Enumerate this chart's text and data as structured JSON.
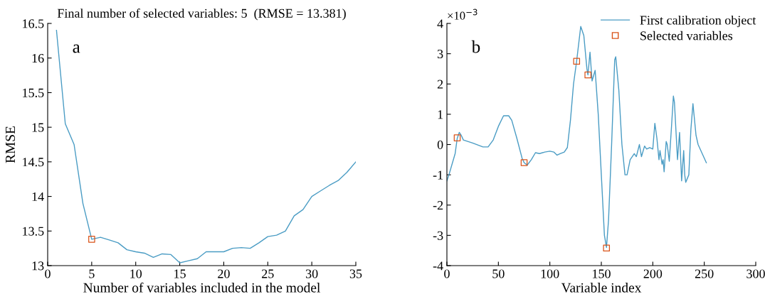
{
  "chart_data": [
    {
      "type": "line",
      "title": "Final number of selected variables: 5  (RMSE = 13.381)",
      "xlabel": "Number of variables included in the model",
      "ylabel": "RMSE",
      "xlim": [
        0,
        35
      ],
      "xticks": [
        0,
        5,
        10,
        15,
        20,
        25,
        30,
        35
      ],
      "ylim": [
        13,
        16.5
      ],
      "yticks": [
        13,
        13.5,
        14,
        14.5,
        15,
        15.5,
        16,
        16.5
      ],
      "grid": false,
      "legend": false,
      "annotations": [
        "a"
      ],
      "series": [
        {
          "color": "#4a9cc4",
          "marker": "none",
          "x": [
            1,
            2,
            3,
            4,
            5,
            6,
            7,
            8,
            9,
            10,
            11,
            12,
            13,
            14,
            15,
            16,
            17,
            18,
            19,
            20,
            21,
            22,
            23,
            24,
            25,
            26,
            27,
            28,
            29,
            30,
            31,
            32,
            33,
            34,
            35
          ],
          "values": [
            16.4,
            15.05,
            14.75,
            13.9,
            13.381,
            13.41,
            13.37,
            13.33,
            13.23,
            13.2,
            13.18,
            13.12,
            13.17,
            13.16,
            13.04,
            13.07,
            13.1,
            13.2,
            13.2,
            13.2,
            13.25,
            13.26,
            13.25,
            13.33,
            13.42,
            13.44,
            13.5,
            13.72,
            13.81,
            14.0,
            14.08,
            14.16,
            14.23,
            14.35,
            14.5
          ]
        },
        {
          "type": "scatter",
          "color": "#d95319",
          "marker": "square",
          "x": [
            5
          ],
          "values": [
            13.381
          ]
        }
      ]
    },
    {
      "type": "line",
      "xlabel": "Variable index",
      "xlim": [
        0,
        300
      ],
      "xticks": [
        0,
        50,
        100,
        150,
        200,
        250,
        300
      ],
      "ylim": [
        -4,
        4
      ],
      "yticks": [
        {
          "value": -4,
          "label": "-4"
        },
        {
          "value": -3,
          "label": "-3"
        },
        {
          "value": -2,
          "label": "-2"
        },
        {
          "value": -1,
          "label": "-1"
        },
        0,
        1,
        2,
        3,
        4
      ],
      "grid": false,
      "legend": "top right",
      "annotations": [
        "b",
        "×10$^{−3}$"
      ],
      "series": [
        {
          "name": "First calibration object",
          "color": "#4a9cc4",
          "marker": "none",
          "x": [
            0,
            2,
            8,
            10,
            12,
            14,
            16,
            25,
            35,
            40,
            45,
            50,
            55,
            60,
            63,
            68,
            73,
            75,
            78,
            82,
            86,
            90,
            95,
            100,
            104,
            107,
            110,
            114,
            117,
            120,
            123,
            126,
            130,
            133,
            136,
            137,
            139,
            141,
            144,
            147,
            150,
            153,
            155,
            157,
            160,
            163,
            164,
            167,
            170,
            173,
            175,
            178,
            182,
            184,
            187,
            189,
            192,
            194,
            197,
            200,
            202,
            204,
            206,
            207,
            209,
            210,
            211,
            213,
            214,
            216,
            218,
            220,
            221,
            224,
            226,
            228,
            230,
            231,
            232,
            235,
            237,
            239,
            242,
            244,
            252
          ],
          "values": [
            -1.2,
            -1.0,
            -0.3,
            0.2,
            0.4,
            0.3,
            0.15,
            0.05,
            -0.08,
            -0.08,
            0.15,
            0.6,
            0.95,
            0.95,
            0.8,
            0.2,
            -0.45,
            -0.6,
            -0.68,
            -0.5,
            -0.27,
            -0.3,
            -0.25,
            -0.22,
            -0.25,
            -0.35,
            -0.3,
            -0.25,
            -0.1,
            0.8,
            2.0,
            2.75,
            3.9,
            3.6,
            2.5,
            2.3,
            3.05,
            2.1,
            2.45,
            1.0,
            -1.0,
            -3.0,
            -3.4,
            -2.5,
            0.0,
            2.8,
            2.9,
            1.8,
            0.0,
            -1.0,
            -1.0,
            -0.5,
            -0.3,
            -0.4,
            0.0,
            -0.4,
            -0.05,
            -0.15,
            -0.1,
            -0.15,
            0.7,
            0.2,
            -0.5,
            -0.2,
            -0.65,
            -0.5,
            -0.9,
            0.1,
            0.0,
            -0.55,
            0.5,
            1.6,
            1.4,
            -0.5,
            0.4,
            -1.2,
            -0.2,
            -1.0,
            -1.25,
            -1.0,
            0.5,
            1.35,
            0.3,
            0.0,
            -0.6
          ]
        },
        {
          "type": "scatter",
          "name": "Selected variables",
          "color": "#d95319",
          "marker": "square",
          "x": [
            10,
            75,
            126,
            137,
            155
          ],
          "values": [
            0.22,
            -0.6,
            2.75,
            2.3,
            -3.42
          ]
        }
      ]
    }
  ]
}
